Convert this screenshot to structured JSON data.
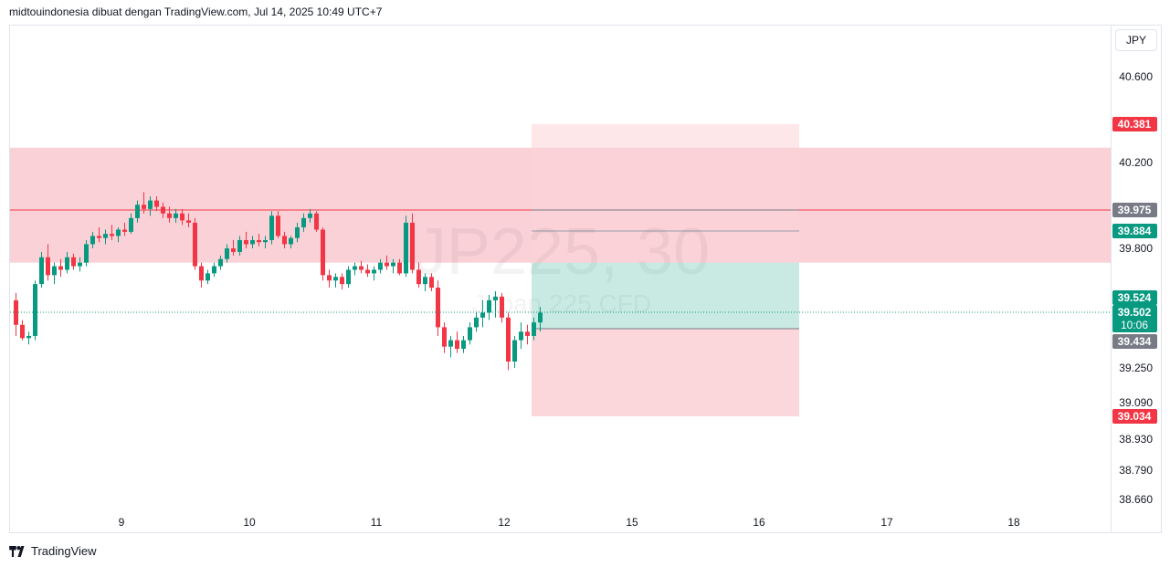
{
  "header": {
    "text": "midtouindonesia dibuat dengan TradingView.com, Jul 14, 2025 10:49 UTC+7"
  },
  "footer": {
    "brand": "TradingView",
    "logo_icon": "tradingview-logo-icon"
  },
  "currency": "JPY",
  "watermark": {
    "symbol": "JP225, 30",
    "name": "Japan 225 CFD"
  },
  "colors": {
    "up": "#089981",
    "down": "#f23645",
    "zone": "#f7b9c1",
    "target": "#b2ebe0",
    "stop": "#fbd3d7",
    "grid": "#e0e3eb",
    "label_gray": "#787b86"
  },
  "chart_data": {
    "type": "candlestick",
    "symbol": "JP225",
    "timeframe": "30",
    "x_ticks": [
      "9",
      "10",
      "11",
      "12",
      "15",
      "16",
      "17",
      "18"
    ],
    "y_ticks": [
      "40.600",
      "40.200",
      "39.800",
      "39.250",
      "39.090",
      "38.930",
      "38.790",
      "38.660"
    ],
    "price_labels": [
      {
        "value": "40.381",
        "color": "#f23645"
      },
      {
        "value": "39.975",
        "color": "#787b86"
      },
      {
        "value": "39.884",
        "color": "#089981"
      },
      {
        "value": "39.524",
        "color": "#089981"
      },
      {
        "value": "39.502",
        "color": "#089981",
        "sub": "10:06"
      },
      {
        "value": "39.434",
        "color": "#787b86"
      },
      {
        "value": "39.034",
        "color": "#f23645"
      }
    ],
    "resistance_zone": {
      "from": 39.72,
      "to": 40.27
    },
    "resistance_line": 39.975,
    "position": {
      "entry": 39.434,
      "stop": 40.381,
      "target": 39.034,
      "direction": "short"
    },
    "last_price": 39.502,
    "candles": [
      [
        0,
        39.52,
        39.55,
        39.4,
        39.45
      ],
      [
        1,
        39.45,
        39.47,
        39.38,
        39.39
      ],
      [
        2,
        39.39,
        39.42,
        39.36,
        39.4
      ],
      [
        3,
        39.4,
        39.62,
        39.38,
        39.6
      ],
      [
        4,
        39.6,
        39.78,
        39.58,
        39.75
      ],
      [
        5,
        39.75,
        39.82,
        39.62,
        39.65
      ],
      [
        6,
        39.65,
        39.72,
        39.6,
        39.7
      ],
      [
        7,
        39.7,
        39.74,
        39.64,
        39.68
      ],
      [
        8,
        39.68,
        39.78,
        39.66,
        39.75
      ],
      [
        9,
        39.75,
        39.77,
        39.68,
        39.7
      ],
      [
        10,
        39.7,
        39.75,
        39.67,
        39.72
      ],
      [
        11,
        39.72,
        39.84,
        39.7,
        39.82
      ],
      [
        12,
        39.82,
        39.88,
        39.8,
        39.86
      ],
      [
        13,
        39.86,
        39.9,
        39.83,
        39.85
      ],
      [
        14,
        39.85,
        39.89,
        39.82,
        39.87
      ],
      [
        15,
        39.87,
        39.91,
        39.84,
        39.86
      ],
      [
        16,
        39.86,
        39.9,
        39.83,
        39.89
      ],
      [
        17,
        39.89,
        39.92,
        39.86,
        39.88
      ],
      [
        18,
        39.88,
        39.96,
        39.87,
        39.94
      ],
      [
        19,
        39.94,
        40.02,
        39.92,
        40.0
      ],
      [
        20,
        40.0,
        40.06,
        39.96,
        39.98
      ],
      [
        21,
        39.98,
        40.04,
        39.95,
        40.02
      ],
      [
        22,
        40.02,
        40.04,
        39.97,
        39.99
      ],
      [
        23,
        39.99,
        40.01,
        39.94,
        39.96
      ],
      [
        24,
        39.96,
        39.99,
        39.92,
        39.94
      ],
      [
        25,
        39.94,
        39.98,
        39.92,
        39.96
      ],
      [
        26,
        39.96,
        39.98,
        39.91,
        39.93
      ],
      [
        27,
        39.93,
        39.96,
        39.9,
        39.92
      ],
      [
        28,
        39.92,
        39.94,
        39.68,
        39.7
      ],
      [
        29,
        39.7,
        39.72,
        39.58,
        39.62
      ],
      [
        30,
        39.62,
        39.68,
        39.6,
        39.66
      ],
      [
        31,
        39.66,
        39.72,
        39.64,
        39.7
      ],
      [
        32,
        39.7,
        39.76,
        39.68,
        39.74
      ],
      [
        33,
        39.74,
        39.82,
        39.72,
        39.8
      ],
      [
        34,
        39.8,
        39.84,
        39.76,
        39.78
      ],
      [
        35,
        39.78,
        39.86,
        39.76,
        39.84
      ],
      [
        36,
        39.84,
        39.88,
        39.8,
        39.82
      ],
      [
        37,
        39.82,
        39.86,
        39.8,
        39.84
      ],
      [
        38,
        39.84,
        39.87,
        39.81,
        39.83
      ],
      [
        39,
        39.83,
        39.86,
        39.8,
        39.84
      ],
      [
        40,
        39.84,
        39.97,
        39.82,
        39.95
      ],
      [
        41,
        39.95,
        39.97,
        39.85,
        39.86
      ],
      [
        42,
        39.86,
        39.88,
        39.8,
        39.82
      ],
      [
        43,
        39.82,
        39.86,
        39.8,
        39.85
      ],
      [
        44,
        39.85,
        39.92,
        39.83,
        39.9
      ],
      [
        45,
        39.9,
        39.96,
        39.88,
        39.94
      ],
      [
        46,
        39.94,
        39.98,
        39.92,
        39.96
      ],
      [
        47,
        39.96,
        39.97,
        39.88,
        39.89
      ],
      [
        48,
        39.89,
        39.9,
        39.62,
        39.65
      ],
      [
        49,
        39.65,
        39.68,
        39.58,
        39.62
      ],
      [
        50,
        39.62,
        39.66,
        39.58,
        39.64
      ],
      [
        51,
        39.64,
        39.66,
        39.57,
        39.6
      ],
      [
        52,
        39.6,
        39.7,
        39.58,
        39.68
      ],
      [
        53,
        39.68,
        39.72,
        39.65,
        39.7
      ],
      [
        54,
        39.7,
        39.73,
        39.66,
        39.68
      ],
      [
        55,
        39.68,
        39.71,
        39.64,
        39.66
      ],
      [
        56,
        39.66,
        39.7,
        39.62,
        39.68
      ],
      [
        57,
        39.68,
        39.74,
        39.66,
        39.72
      ],
      [
        58,
        39.72,
        39.76,
        39.68,
        39.7
      ],
      [
        59,
        39.7,
        39.74,
        39.66,
        39.72
      ],
      [
        60,
        39.72,
        39.74,
        39.65,
        39.66
      ],
      [
        61,
        39.66,
        39.95,
        39.64,
        39.92
      ],
      [
        62,
        39.92,
        39.96,
        39.66,
        39.68
      ],
      [
        63,
        39.68,
        39.72,
        39.58,
        39.6
      ],
      [
        64,
        39.6,
        39.66,
        39.56,
        39.64
      ],
      [
        65,
        39.64,
        39.66,
        39.56,
        39.58
      ],
      [
        66,
        39.58,
        39.62,
        39.4,
        39.44
      ],
      [
        67,
        39.44,
        39.46,
        39.32,
        39.35
      ],
      [
        68,
        39.35,
        39.4,
        39.3,
        39.38
      ],
      [
        69,
        39.38,
        39.42,
        39.32,
        39.34
      ],
      [
        70,
        39.34,
        39.4,
        39.32,
        39.38
      ],
      [
        71,
        39.38,
        39.46,
        39.36,
        39.44
      ],
      [
        72,
        39.44,
        39.5,
        39.42,
        39.48
      ],
      [
        73,
        39.48,
        39.52,
        39.44,
        39.5
      ],
      [
        74,
        39.5,
        39.54,
        39.47,
        39.52
      ],
      [
        75,
        39.52,
        39.56,
        39.48,
        39.53
      ],
      [
        76,
        39.53,
        39.55,
        39.46,
        39.48
      ],
      [
        77,
        39.48,
        39.5,
        39.24,
        39.28
      ],
      [
        78,
        39.28,
        39.4,
        39.25,
        39.38
      ],
      [
        79,
        39.38,
        39.46,
        39.34,
        39.42
      ],
      [
        80,
        39.42,
        39.45,
        39.36,
        39.4
      ],
      [
        81,
        39.4,
        39.48,
        39.38,
        39.46
      ],
      [
        82,
        39.46,
        39.51,
        39.42,
        39.5
      ]
    ]
  }
}
